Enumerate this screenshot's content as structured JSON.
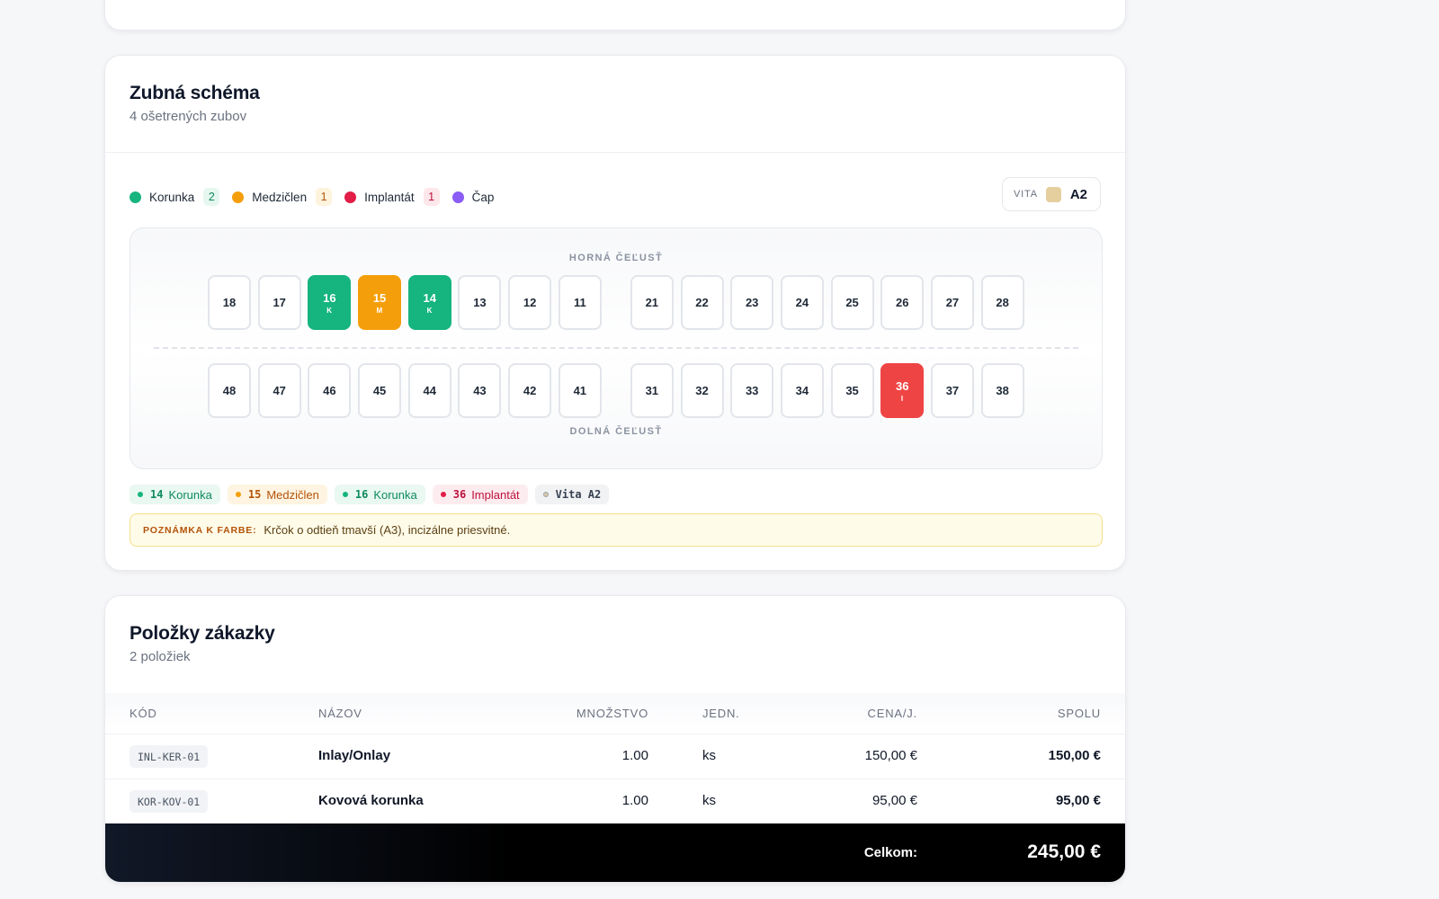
{
  "schema": {
    "title": "Zubná schéma",
    "subtitle": "4 ošetrených zubov",
    "legend": [
      {
        "label": "Korunka",
        "count": "2",
        "color": "#16b47e",
        "count_bg": "#e6f7ef",
        "count_color": "#0f8a5f"
      },
      {
        "label": "Medzičlen",
        "count": "1",
        "color": "#f59e0b",
        "count_bg": "#fef3dd",
        "count_color": "#b45309"
      },
      {
        "label": "Implantát",
        "count": "1",
        "color": "#e11d48",
        "count_bg": "#fde7ea",
        "count_color": "#be123c"
      },
      {
        "label": "Čap",
        "count": "",
        "color": "#8b5cf6"
      }
    ],
    "vita": {
      "label": "VITA",
      "value": "A2",
      "color": "#e6cf9f"
    },
    "upper_label": "HORNÁ ČEĽUSŤ",
    "lower_label": "DOLNÁ ČEĽUSŤ",
    "upper": [
      {
        "n": "18"
      },
      {
        "n": "17"
      },
      {
        "n": "16",
        "code": "K",
        "type": "green"
      },
      {
        "n": "15",
        "code": "M",
        "type": "orange"
      },
      {
        "n": "14",
        "code": "K",
        "type": "green"
      },
      {
        "n": "13"
      },
      {
        "n": "12"
      },
      {
        "n": "11"
      },
      {
        "n": "21"
      },
      {
        "n": "22"
      },
      {
        "n": "23"
      },
      {
        "n": "24"
      },
      {
        "n": "25"
      },
      {
        "n": "26"
      },
      {
        "n": "27"
      },
      {
        "n": "28"
      }
    ],
    "lower": [
      {
        "n": "48"
      },
      {
        "n": "47"
      },
      {
        "n": "46"
      },
      {
        "n": "45"
      },
      {
        "n": "44"
      },
      {
        "n": "43"
      },
      {
        "n": "42"
      },
      {
        "n": "41"
      },
      {
        "n": "31"
      },
      {
        "n": "32"
      },
      {
        "n": "33"
      },
      {
        "n": "34"
      },
      {
        "n": "35"
      },
      {
        "n": "36",
        "code": "I",
        "type": "red"
      },
      {
        "n": "37"
      },
      {
        "n": "38"
      }
    ],
    "tags": [
      {
        "num": "14",
        "label": "Korunka",
        "bg": "#e9f8f1",
        "color": "#0f8a5f",
        "dot": "#16b47e"
      },
      {
        "num": "15",
        "label": "Medzičlen",
        "bg": "#fef4e1",
        "color": "#b45309",
        "dot": "#f59e0b"
      },
      {
        "num": "16",
        "label": "Korunka",
        "bg": "#e9f8f1",
        "color": "#0f8a5f",
        "dot": "#16b47e"
      },
      {
        "num": "36",
        "label": "Implantát",
        "bg": "#fdecef",
        "color": "#be123c",
        "dot": "#e11d48"
      }
    ],
    "vita_tag": "Vita A2",
    "note": {
      "label": "POZNÁMKA K FARBE:",
      "text": "Krčok o odtieň tmavší (A3), incizálne priesvitné."
    }
  },
  "items": {
    "title": "Položky zákazky",
    "subtitle": "2 položiek",
    "headers": {
      "code": "KÓD",
      "name": "NÁZOV",
      "qty": "MNOŽSTVO",
      "unit": "JEDN.",
      "price": "CENA/J.",
      "total": "SPOLU"
    },
    "rows": [
      {
        "code": "INL-KER-01",
        "name": "Inlay/Onlay",
        "qty": "1.00",
        "unit": "ks",
        "price": "150,00 €",
        "total": "150,00 €"
      },
      {
        "code": "KOR-KOV-01",
        "name": "Kovová korunka",
        "qty": "1.00",
        "unit": "ks",
        "price": "95,00 €",
        "total": "95,00 €"
      }
    ],
    "total_label": "Celkom:",
    "total_value": "245,00 €"
  }
}
